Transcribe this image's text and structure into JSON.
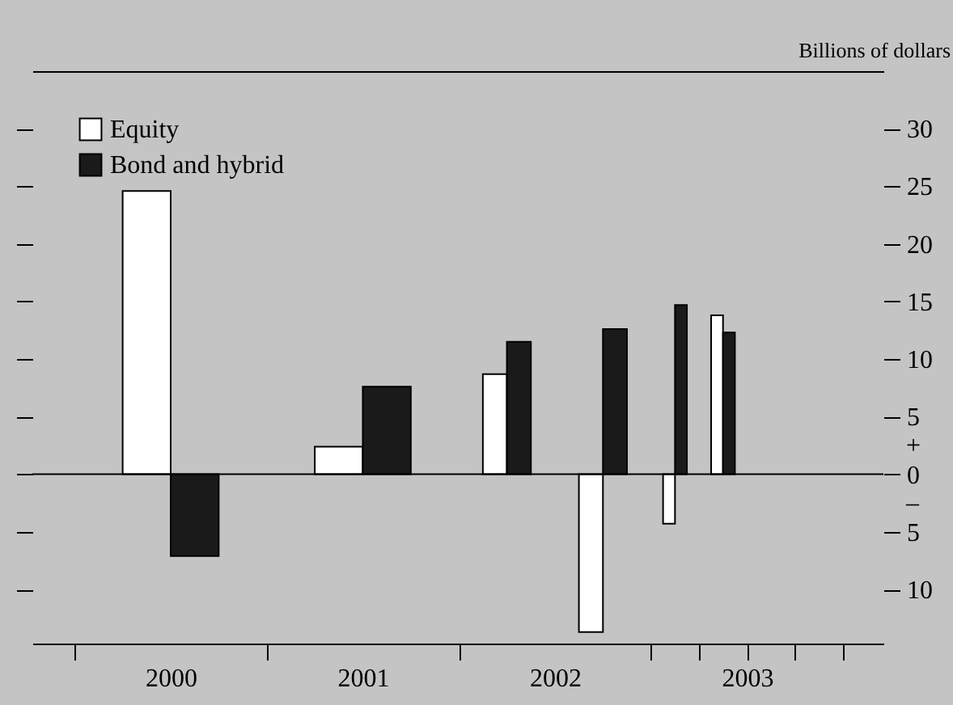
{
  "chart_data": {
    "type": "bar",
    "ylabel": "Billions of dollars",
    "series": [
      {
        "name": "Equity",
        "color": "#ffffff",
        "x": [
          2000.375,
          2001.375,
          2002.1875,
          2002.6875,
          2003.094,
          2003.344
        ],
        "values": [
          24.6,
          2.4,
          8.7,
          -13.7,
          -4.3,
          13.8
        ]
      },
      {
        "name": "Bond and hybrid",
        "color": "#1a1a1a",
        "x": [
          2000.625,
          2001.625,
          2002.3125,
          2002.8125,
          2003.156,
          2003.406
        ],
        "values": [
          -7.1,
          7.6,
          11.5,
          12.6,
          14.7,
          12.3
        ]
      }
    ],
    "xlim": [
      1999.78,
      2004.21
    ],
    "xticks": [
      {
        "value": 2000,
        "label": null
      },
      {
        "value": 2001,
        "label": null
      },
      {
        "value": 2002,
        "label": null
      },
      {
        "value": 2003,
        "label": null
      },
      {
        "value": 2003.25,
        "label": null
      },
      {
        "value": 2003.5,
        "label": null
      },
      {
        "value": 2003.75,
        "label": null
      },
      {
        "value": 2004,
        "label": null
      },
      {
        "value": 2000.5,
        "label": "2000"
      },
      {
        "value": 2001.5,
        "label": "2001"
      },
      {
        "value": 2002.5,
        "label": "2002"
      },
      {
        "value": 2003.5,
        "label": "2003"
      }
    ],
    "ylim": [
      -14.7,
      35
    ],
    "yticks": [
      {
        "value": -10,
        "label": "10"
      },
      {
        "value": -5,
        "label": "5"
      },
      0,
      5,
      10,
      15,
      20,
      25,
      30
    ],
    "ref_lines": [
      {
        "axis": "y",
        "value": 0
      }
    ],
    "annotations": [
      "+",
      "–"
    ],
    "legend": "top left",
    "grid": false
  }
}
